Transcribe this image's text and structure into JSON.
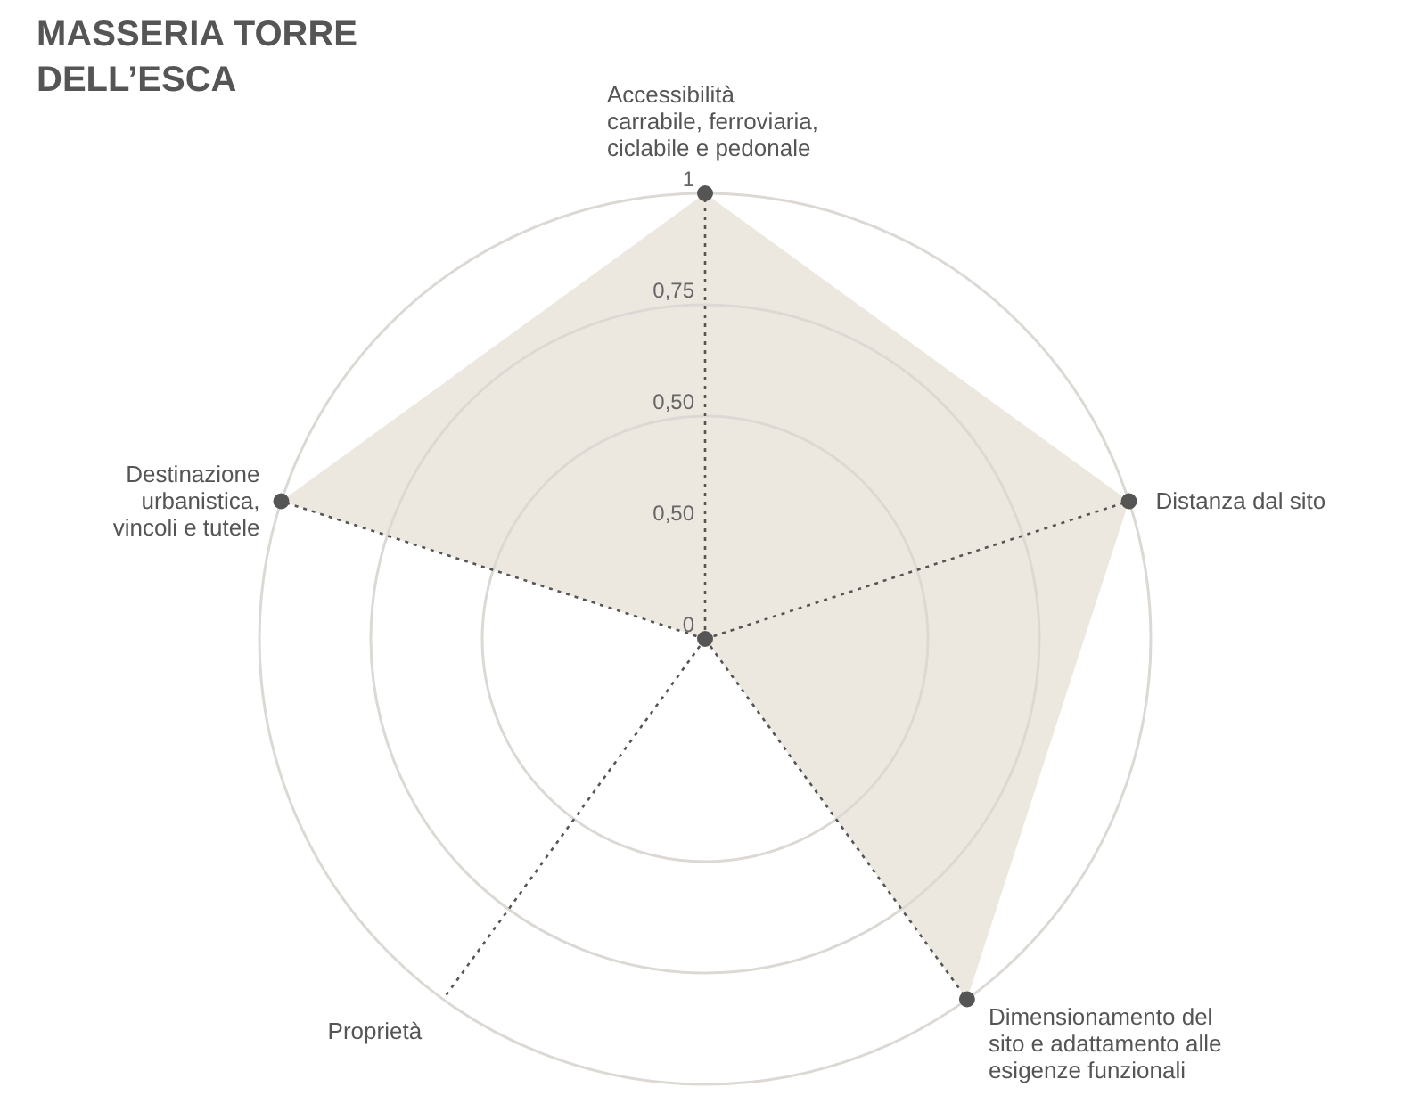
{
  "chart_data": {
    "type": "radar",
    "title": "MASSERIA TORRE DELL’ESCA",
    "categories": [
      "Accessibilità\ncarrabile, ferroviaria,\nciclabile e pedonale",
      "Distanza dal sito",
      "Dimensionamento del\nsito e adattamento alle\nesigenze funzionali",
      "Proprietà",
      "Destinazione\nurbanistica,\nvincoli e tutele"
    ],
    "series": [
      {
        "color": "#ebe6dc",
        "values": [
          1,
          1,
          1,
          0,
          1
        ]
      }
    ],
    "ylim": [
      0,
      1
    ],
    "annotations": [
      "0,50"
    ],
    "yticks": [
      0,
      {
        "value": 0.5,
        "label": "0,50"
      },
      {
        "value": 0.75,
        "label": "0,75"
      },
      1
    ],
    "grid": true,
    "marker": "circle",
    "line_style": "dotted"
  }
}
